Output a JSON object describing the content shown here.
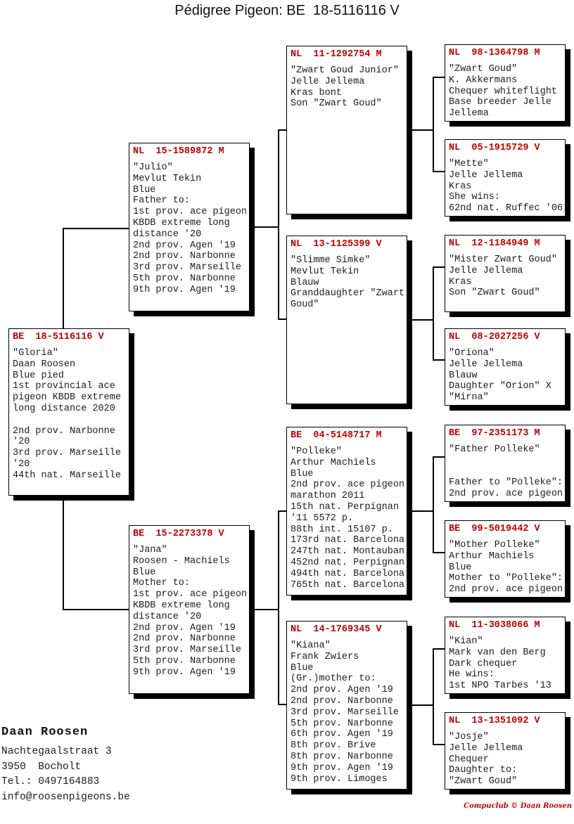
{
  "title": "Pédigree Pigeon: BE  18-5116116 V",
  "colors": {
    "ring_red": "#c00000",
    "body_text": "#1c1c1c"
  },
  "pedigree": {
    "boxes": [
      {
        "id": "subject",
        "ring": "BE  18-5116116 V",
        "lines": [
          "\"Gloria\"",
          "Daan Roosen",
          "Blue pied",
          "1st provincial ace",
          "pigeon KBDB extreme",
          "long distance 2020",
          "",
          "2nd prov. Narbonne",
          "'20",
          "3rd prov. Marseille",
          "'20",
          "44th nat. Marseille"
        ]
      },
      {
        "id": "father",
        "ring": "NL  15-1589872 M",
        "lines": [
          "\"Julio\"",
          "Mevlut Tekin",
          "Blue",
          "Father to:",
          "1st prov. ace pigeon",
          "KBDB extreme long",
          "distance '20",
          "2nd prov. Agen '19",
          "2nd prov. Narbonne",
          "3rd prov. Marseille",
          "5th prov. Narbonne",
          "9th prov. Agen '19"
        ]
      },
      {
        "id": "mother",
        "ring": "BE  15-2273378 V",
        "lines": [
          "\"Jana\"",
          "Roosen - Machiels",
          "Blue",
          "Mother to:",
          "1st prov. ace pigeon",
          "KBDB extreme long",
          "distance '20",
          "2nd prov. Agen '19",
          "2nd prov. Narbonne",
          "3rd prov. Marseille",
          "5th prov. Narbonne",
          "9th prov. Agen '19"
        ]
      },
      {
        "id": "ff",
        "ring": "NL  11-1292754 M",
        "lines": [
          "\"Zwart Goud Junior\"",
          "Jelle Jellema",
          "Kras bont",
          "Son \"Zwart Goud\""
        ]
      },
      {
        "id": "fm",
        "ring": "NL  13-1125399 V",
        "lines": [
          "\"Slimme Simke\"",
          "Mevlut Tekin",
          "Blauw",
          "Granddaughter \"Zwart",
          "Goud\""
        ]
      },
      {
        "id": "mf",
        "ring": "BE  04-5148717 M",
        "lines": [
          "\"Polleke\"",
          "Arthur Machiels",
          "Blue",
          "2nd prov. ace pigeon",
          "marathon 2011",
          "15th nat. Perpignan",
          "'11 5572 p.",
          "88th int. 15107 p.",
          "173rd nat. Barcelona",
          "247th nat. Montauban",
          "452nd nat. Perpignan",
          "494th nat. Barcelona",
          "765th nat. Barcelona"
        ]
      },
      {
        "id": "mm",
        "ring": "NL  14-1769345 V",
        "lines": [
          "\"Kiana\"",
          "Frank Zwiers",
          "Blue",
          "(Gr.)mother to:",
          "2nd prov. Agen '19",
          "2nd prov. Narbonne",
          "3rd prov. Marseille",
          "5th prov. Narbonne",
          "6th prov. Agen '19",
          "8th prov. Brive",
          "8th prov. Narbonne",
          "9th prov. Agen '19",
          "9th prov. Limoges"
        ]
      },
      {
        "id": "fff",
        "ring": "NL  98-1364798 M",
        "lines": [
          "\"Zwart Goud\"",
          "K. Akkermans",
          "Chequer whiteflight",
          "Base breeder Jelle",
          "Jellema"
        ]
      },
      {
        "id": "ffm",
        "ring": "NL  05-1915729 V",
        "lines": [
          "\"Mette\"",
          "Jelle Jellema",
          "Kras",
          "She wins:",
          "62nd nat. Ruffec '06"
        ]
      },
      {
        "id": "fmf",
        "ring": "NL  12-1184949 M",
        "lines": [
          "\"Mister Zwart Goud\"",
          "Jelle Jellema",
          "Kras",
          "Son \"Zwart Goud\""
        ]
      },
      {
        "id": "fmm",
        "ring": "NL  08-2027256 V",
        "lines": [
          "\"Oriona\"",
          "Jelle Jellema",
          "Blauw",
          "Daughter \"Orion\" X",
          "\"Mirna\""
        ]
      },
      {
        "id": "mff",
        "ring": "BE  97-2351173 M",
        "lines": [
          "\"Father Polleke\"",
          "",
          "",
          "Father to \"Polleke\":",
          "2nd prov. ace pigeon"
        ]
      },
      {
        "id": "mfm",
        "ring": "BE  99-5019442 V",
        "lines": [
          "\"Mother Polleke\"",
          "Arthur Machiels",
          "Blue",
          "Mother to \"Polleke\":",
          "2nd prov. ace pigeon"
        ]
      },
      {
        "id": "mmf",
        "ring": "NL  11-3038066 M",
        "lines": [
          "\"Kian\"",
          "Mark van den Berg",
          "Dark chequer",
          "He wins:",
          "1st NPO Tarbes '13"
        ]
      },
      {
        "id": "mmm",
        "ring": "NL  13-1351092 V",
        "lines": [
          "\"Josje\"",
          "Jelle Jellema",
          "Chequer",
          "Daughter to:",
          "\"Zwart Goud\""
        ]
      }
    ]
  },
  "footer": {
    "breeder_name": "Daan Roosen",
    "address_line1": "Nachtegaalstraat 3",
    "address_line2": "3950  Bocholt",
    "phone": "Tel.: 0497164883",
    "email": "info@roosenpigeons.be"
  },
  "credit": "Compuclub © Daan Roosen"
}
